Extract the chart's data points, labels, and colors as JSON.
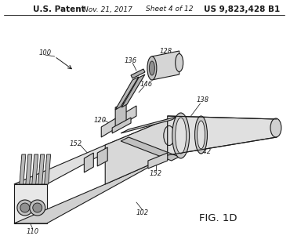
{
  "header_left": "U.S. Patent",
  "header_mid1": "Nov. 21, 2017",
  "header_mid2": "Sheet 4 of 12",
  "header_right": "US 9,823,428 B1",
  "fig_label": "FIG. 1D",
  "bg_color": "#ffffff",
  "line_color": "#1a1a1a",
  "text_color": "#1a1a1a",
  "gray_fill": "#cccccc",
  "light_gray": "#e8e8e8"
}
